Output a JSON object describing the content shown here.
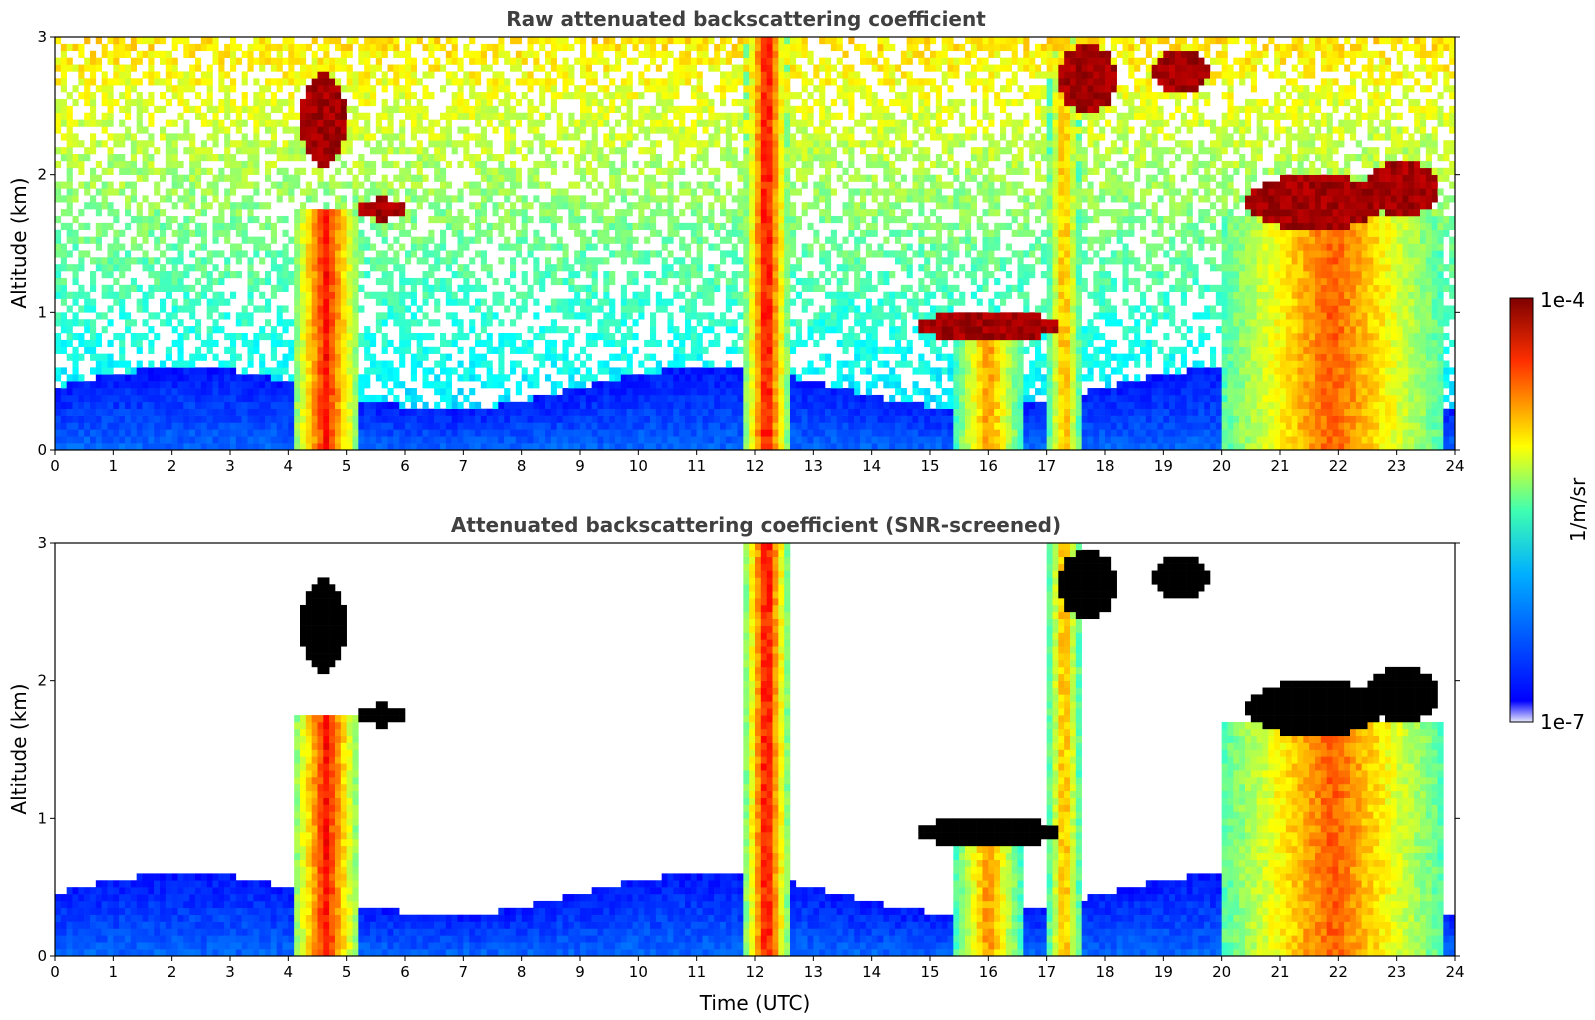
{
  "chart_data": [
    {
      "type": "heatmap",
      "title": "Raw attenuated backscattering coefficient",
      "xlabel": "",
      "ylabel": "Altitude (km)",
      "xlim": [
        0,
        24
      ],
      "ylim": [
        0,
        3
      ],
      "xticks": [
        "0",
        "1",
        "2",
        "3",
        "4",
        "5",
        "6",
        "7",
        "8",
        "9",
        "10",
        "11",
        "12",
        "13",
        "14",
        "15",
        "16",
        "17",
        "18",
        "19",
        "20",
        "21",
        "22",
        "23",
        "24"
      ],
      "yticks": [
        "0",
        "1",
        "2",
        "3"
      ],
      "screened": false,
      "features": [
        {
          "kind": "column",
          "x0": 4.1,
          "x1": 5.2,
          "ytop": 1.75,
          "level": 0.82
        },
        {
          "kind": "column",
          "x0": 11.85,
          "x1": 12.55,
          "ytop": 3.0,
          "level": 0.85
        },
        {
          "kind": "column",
          "x0": 15.4,
          "x1": 16.6,
          "ytop": 1.0,
          "level": 0.7
        },
        {
          "kind": "column",
          "x0": 17.0,
          "x1": 17.6,
          "ytop": 3.0,
          "level": 0.68
        },
        {
          "kind": "column",
          "x0": 20.0,
          "x1": 23.8,
          "ytop": 1.7,
          "level": 0.75
        },
        {
          "kind": "cloud",
          "x": 4.6,
          "y": 2.4,
          "w": 0.4,
          "h": 0.35
        },
        {
          "kind": "cloud",
          "x": 5.6,
          "y": 1.75,
          "w": 0.4,
          "h": 0.08
        },
        {
          "kind": "cloud",
          "x": 16.0,
          "y": 0.9,
          "w": 1.2,
          "h": 0.12
        },
        {
          "kind": "cloud",
          "x": 17.7,
          "y": 2.7,
          "w": 0.5,
          "h": 0.25
        },
        {
          "kind": "cloud",
          "x": 19.3,
          "y": 2.75,
          "w": 0.5,
          "h": 0.15
        },
        {
          "kind": "cloud",
          "x": 21.6,
          "y": 1.8,
          "w": 1.2,
          "h": 0.2
        },
        {
          "kind": "cloud",
          "x": 23.1,
          "y": 1.9,
          "w": 0.6,
          "h": 0.2
        }
      ]
    },
    {
      "type": "heatmap",
      "title": "Attenuated backscattering coefficient (SNR-screened)",
      "xlabel": "Time (UTC)",
      "ylabel": "Altitude (km)",
      "xlim": [
        0,
        24
      ],
      "ylim": [
        0,
        3
      ],
      "xticks": [
        "0",
        "1",
        "2",
        "3",
        "4",
        "5",
        "6",
        "7",
        "8",
        "9",
        "10",
        "11",
        "12",
        "13",
        "14",
        "15",
        "16",
        "17",
        "18",
        "19",
        "20",
        "21",
        "22",
        "23",
        "24"
      ],
      "yticks": [
        "0",
        "1",
        "2",
        "3"
      ],
      "screened": true,
      "features": [
        {
          "kind": "column",
          "x0": 4.1,
          "x1": 5.2,
          "ytop": 1.75,
          "level": 0.82
        },
        {
          "kind": "column",
          "x0": 11.85,
          "x1": 12.55,
          "ytop": 3.0,
          "level": 0.85
        },
        {
          "kind": "column",
          "x0": 15.4,
          "x1": 16.6,
          "ytop": 1.0,
          "level": 0.7
        },
        {
          "kind": "column",
          "x0": 17.0,
          "x1": 17.6,
          "ytop": 3.0,
          "level": 0.68
        },
        {
          "kind": "column",
          "x0": 20.0,
          "x1": 23.8,
          "ytop": 1.7,
          "level": 0.75
        },
        {
          "kind": "cloud",
          "x": 4.6,
          "y": 2.4,
          "w": 0.4,
          "h": 0.35
        },
        {
          "kind": "cloud",
          "x": 5.6,
          "y": 1.75,
          "w": 0.4,
          "h": 0.08
        },
        {
          "kind": "cloud",
          "x": 16.0,
          "y": 0.9,
          "w": 1.2,
          "h": 0.12
        },
        {
          "kind": "cloud",
          "x": 17.7,
          "y": 2.7,
          "w": 0.5,
          "h": 0.25
        },
        {
          "kind": "cloud",
          "x": 19.3,
          "y": 2.75,
          "w": 0.5,
          "h": 0.15
        },
        {
          "kind": "cloud",
          "x": 21.6,
          "y": 1.8,
          "w": 1.2,
          "h": 0.2
        },
        {
          "kind": "cloud",
          "x": 23.1,
          "y": 1.9,
          "w": 0.6,
          "h": 0.2
        }
      ]
    }
  ],
  "colorbar": {
    "label": "1/m/sr",
    "max_label": "1e-4",
    "min_label": "1e-7",
    "colormap": "jet",
    "colors": [
      "#e6e6fa",
      "#0000ff",
      "#00ffff",
      "#ffff00",
      "#ff0000",
      "#7f0000"
    ]
  }
}
